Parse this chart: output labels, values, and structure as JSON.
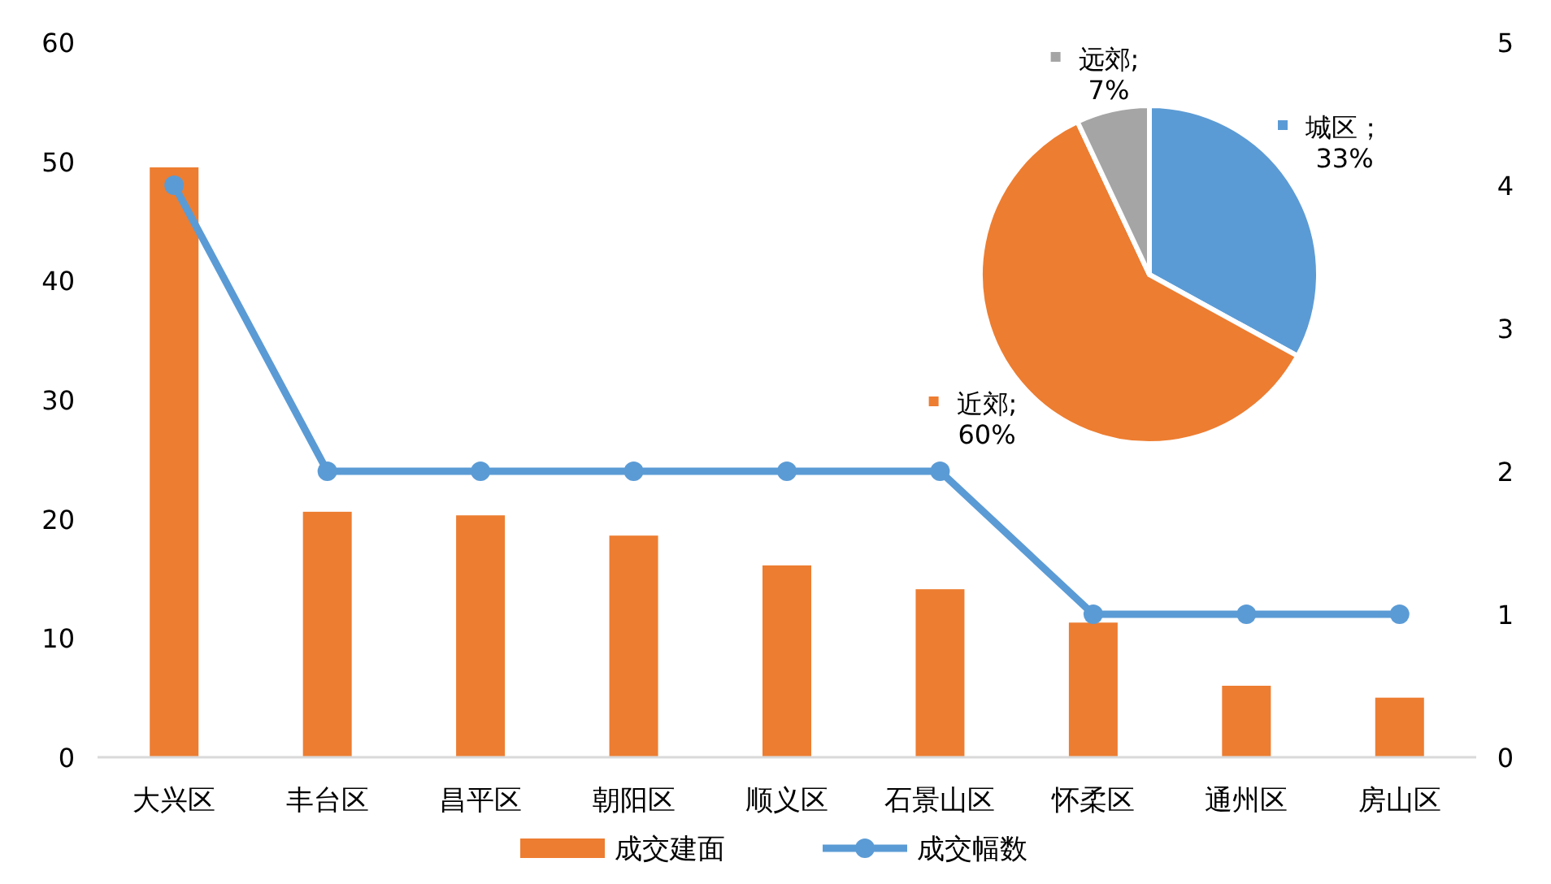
{
  "chart_data": [
    {
      "type": "bar",
      "categories": [
        "大兴区",
        "丰台区",
        "昌平区",
        "朝阳区",
        "顺义区",
        "石景山区",
        "怀柔区",
        "通州区",
        "房山区"
      ],
      "series": [
        {
          "name": "成交建面",
          "type": "bar",
          "color": "#ed7d31",
          "values": [
            49.5,
            20.6,
            20.3,
            18.6,
            16.1,
            14.1,
            11.3,
            6.0,
            5.0
          ]
        },
        {
          "name": "成交幅数",
          "type": "line",
          "axis": "y2",
          "color": "#5b9bd5",
          "marker": "circle",
          "values": [
            4,
            2,
            2,
            2,
            2,
            2,
            1,
            1,
            1
          ]
        }
      ],
      "ylim": [
        0,
        60
      ],
      "yticks": [
        0,
        10,
        20,
        30,
        40,
        50,
        60
      ],
      "y2lim": [
        0,
        5
      ],
      "y2ticks": [
        0,
        1,
        2,
        3,
        4,
        5
      ],
      "grid": false,
      "legend": "bottom"
    },
    {
      "type": "pie",
      "categories": [
        null,
        null,
        null
      ],
      "values": [
        33,
        60,
        7
      ],
      "colors": [
        "#5b9bd5",
        "#ed7d31",
        "#a5a5a5"
      ],
      "value_labels": [
        "城区；\n33%",
        "近郊;\n60%",
        "远郊;\n7%"
      ]
    }
  ]
}
